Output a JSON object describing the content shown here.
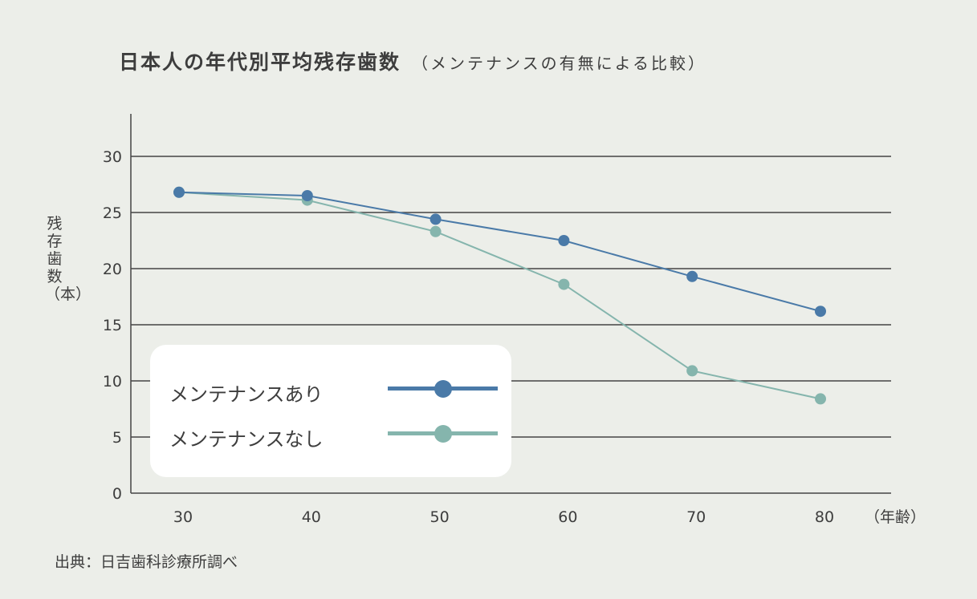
{
  "chart_data": {
    "type": "line",
    "title": "日本人の年代別平均残存歯数",
    "subtitle": "（メンテナンスの有無による比較）",
    "xlabel": "（年齢）",
    "ylabel": "残存歯数（本）",
    "categories": [
      "30",
      "40",
      "50",
      "60",
      "70",
      "80"
    ],
    "x": [
      30,
      40,
      50,
      60,
      70,
      80
    ],
    "ylim": [
      0,
      30
    ],
    "yticks": [
      0,
      5,
      10,
      15,
      20,
      25,
      30
    ],
    "grid": true,
    "legend_position": "bottom-left",
    "series": [
      {
        "name": "メンテナンスあり",
        "color": "#4a7aa8",
        "values": [
          26.8,
          26.5,
          24.4,
          22.5,
          19.3,
          16.2
        ]
      },
      {
        "name": "メンテナンスなし",
        "color": "#85b5ad",
        "values": [
          26.8,
          26.1,
          23.3,
          18.6,
          10.9,
          8.4
        ]
      }
    ],
    "source": "出典：日吉歯科診療所調べ"
  }
}
